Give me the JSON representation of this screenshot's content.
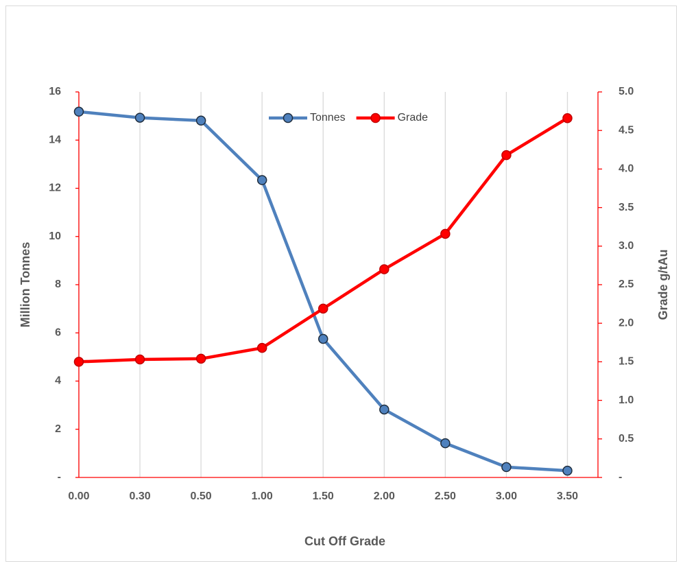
{
  "chart_data": {
    "type": "line",
    "x_label": "Cut Off Grade",
    "y_label": "Million Tonnes",
    "y2_label": "Grade g/tAu",
    "categories": [
      "0.00",
      "0.30",
      "0.50",
      "1.00",
      "1.50",
      "2.00",
      "2.50",
      "3.00",
      "3.50"
    ],
    "series": [
      {
        "name": "Tonnes",
        "color": "#4f81bd",
        "values": [
          15.18,
          14.93,
          14.81,
          12.34,
          5.75,
          2.82,
          1.42,
          0.43,
          0.28
        ]
      },
      {
        "name": "Grade",
        "color": "#ff0000",
        "axis": "y2",
        "values": [
          1.5,
          1.53,
          1.54,
          1.68,
          2.19,
          2.7,
          3.16,
          4.18,
          4.66
        ]
      }
    ],
    "ylim": [
      0,
      16
    ],
    "yticks": [
      {
        "value": 0,
        "label": "-"
      },
      2,
      4,
      6,
      8,
      10,
      12,
      14,
      16
    ],
    "y2lim": [
      0,
      5
    ],
    "y2ticks": [
      {
        "value": 0,
        "label": "-"
      },
      0.5,
      {
        "value": 1,
        "label": "1.0"
      },
      1.5,
      {
        "value": 2,
        "label": "2.0"
      },
      2.5,
      {
        "value": 3,
        "label": "3.0"
      },
      3.5,
      {
        "value": 4,
        "label": "4.0"
      },
      4.5,
      {
        "value": 5,
        "label": "5.0"
      }
    ],
    "grid": "x",
    "axis_color": "#ff0000",
    "legend": "top"
  }
}
